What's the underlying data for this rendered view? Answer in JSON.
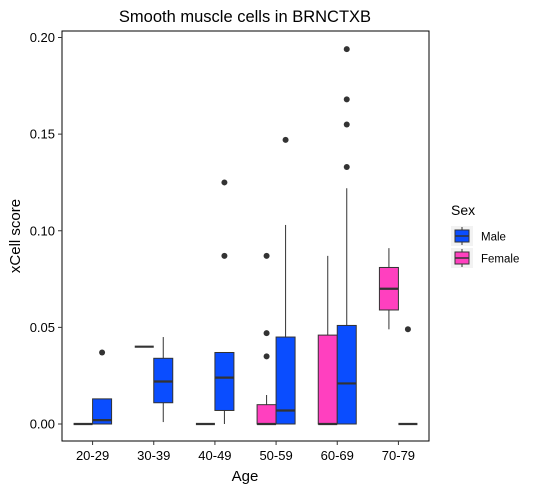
{
  "chart_data": {
    "type": "boxplot",
    "title": "Smooth muscle cells in BRNCTXB",
    "xlabel": "Age",
    "ylabel": "xCell score",
    "categories": [
      "20-29",
      "30-39",
      "40-49",
      "50-59",
      "60-69",
      "70-79"
    ],
    "ylim": [
      -0.01,
      0.205
    ],
    "yticks": [
      0.0,
      0.05,
      0.1,
      0.15,
      0.2
    ],
    "ytick_labels": [
      "0.00",
      "0.05",
      "0.10",
      "0.15",
      "0.20"
    ],
    "grid": false,
    "legend": {
      "title": "Sex",
      "placement": "right",
      "entries": [
        {
          "label": "Female",
          "color": "#ff40bf"
        },
        {
          "label": "Male",
          "color": "#0a4dff"
        }
      ]
    },
    "series": [
      {
        "name": "Female",
        "color": "#ff40bf",
        "boxes": [
          {
            "category": "20-29",
            "min": 0.0,
            "q1": 0.0,
            "median": 0.0,
            "q3": 0.0,
            "max": 0.0,
            "outliers": []
          },
          {
            "category": "30-39",
            "min": 0.04,
            "q1": 0.04,
            "median": 0.04,
            "q3": 0.04,
            "max": 0.04,
            "outliers": []
          },
          {
            "category": "40-49",
            "min": 0.0,
            "q1": 0.0,
            "median": 0.0,
            "q3": 0.0,
            "max": 0.0,
            "outliers": []
          },
          {
            "category": "50-59",
            "min": 0.0,
            "q1": 0.0,
            "median": 0.0,
            "q3": 0.01,
            "max": 0.015,
            "outliers": [
              0.035,
              0.047,
              0.087
            ]
          },
          {
            "category": "60-69",
            "min": 0.0,
            "q1": 0.0,
            "median": 0.0,
            "q3": 0.046,
            "max": 0.087,
            "outliers": []
          },
          {
            "category": "70-79",
            "min": 0.049,
            "q1": 0.059,
            "median": 0.07,
            "q3": 0.081,
            "max": 0.091,
            "outliers": []
          }
        ]
      },
      {
        "name": "Male",
        "color": "#0a4dff",
        "boxes": [
          {
            "category": "20-29",
            "min": 0.0,
            "q1": 0.0,
            "median": 0.002,
            "q3": 0.013,
            "max": 0.013,
            "outliers": [
              0.037
            ]
          },
          {
            "category": "30-39",
            "min": 0.001,
            "q1": 0.011,
            "median": 0.022,
            "q3": 0.034,
            "max": 0.045,
            "outliers": []
          },
          {
            "category": "40-49",
            "min": 0.0,
            "q1": 0.007,
            "median": 0.024,
            "q3": 0.037,
            "max": 0.037,
            "outliers": [
              0.087,
              0.125
            ]
          },
          {
            "category": "50-59",
            "min": 0.0,
            "q1": 0.0,
            "median": 0.007,
            "q3": 0.045,
            "max": 0.103,
            "outliers": [
              0.147
            ]
          },
          {
            "category": "60-69",
            "min": 0.0,
            "q1": 0.0,
            "median": 0.021,
            "q3": 0.051,
            "max": 0.122,
            "outliers": [
              0.133,
              0.155,
              0.168,
              0.194
            ]
          },
          {
            "category": "70-79",
            "min": 0.0,
            "q1": 0.0,
            "median": 0.0,
            "q3": 0.0,
            "max": 0.0,
            "outliers": [
              0.049
            ]
          }
        ]
      }
    ]
  }
}
